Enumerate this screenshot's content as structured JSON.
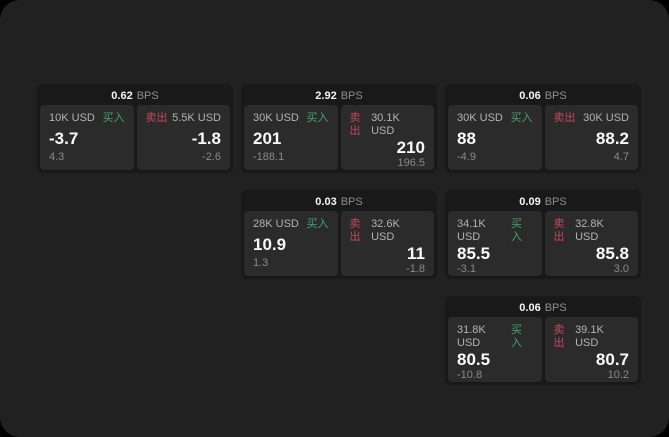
{
  "labels": {
    "bps_unit": "BPS",
    "buy": "买入",
    "sell": "卖出"
  },
  "colors": {
    "background": "#000000",
    "surface": "#212121",
    "card": "#191919",
    "panel": "#2b2b2b",
    "buy_green": "#47a36e",
    "sell_red": "#c4495a",
    "text_primary": "#fafafa",
    "text_secondary": "#b3b3b3",
    "text_muted": "#8a8a8a"
  },
  "cards": [
    {
      "bps": "0.62",
      "buy": {
        "amount": "10K USD",
        "value": "-3.7",
        "delta": "4.3"
      },
      "sell": {
        "amount": "5.5K USD",
        "value": "-1.8",
        "delta": "-2.6"
      }
    },
    {
      "bps": "2.92",
      "buy": {
        "amount": "30K USD",
        "value": "201",
        "delta": "-188.1"
      },
      "sell": {
        "amount": "30.1K USD",
        "value": "210",
        "delta": "196.5"
      }
    },
    {
      "bps": "0.06",
      "buy": {
        "amount": "30K USD",
        "value": "88",
        "delta": "-4.9"
      },
      "sell": {
        "amount": "30K USD",
        "value": "88.2",
        "delta": "4.7"
      }
    },
    {
      "bps": "0.03",
      "buy": {
        "amount": "28K USD",
        "value": "10.9",
        "delta": "1.3"
      },
      "sell": {
        "amount": "32.6K USD",
        "value": "11",
        "delta": "-1.8"
      }
    },
    {
      "bps": "0.09",
      "buy": {
        "amount": "34.1K USD",
        "value": "85.5",
        "delta": "-3.1"
      },
      "sell": {
        "amount": "32.8K USD",
        "value": "85.8",
        "delta": "3.0"
      }
    },
    {
      "bps": "0.06",
      "buy": {
        "amount": "31.8K USD",
        "value": "80.5",
        "delta": "-10.8"
      },
      "sell": {
        "amount": "39.1K USD",
        "value": "80.7",
        "delta": "10.2"
      }
    }
  ]
}
